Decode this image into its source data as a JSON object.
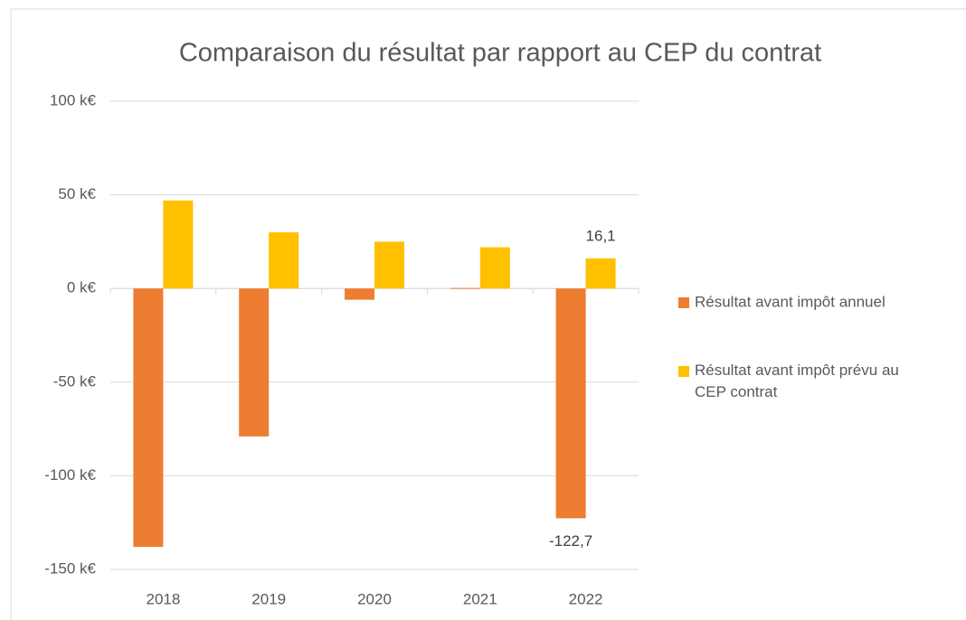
{
  "chart_data": {
    "type": "bar",
    "title": "Comparaison du résultat par rapport au CEP du contrat",
    "categories": [
      "2018",
      "2019",
      "2020",
      "2021",
      "2022"
    ],
    "series": [
      {
        "name": "Résultat avant impôt annuel",
        "color": "#ed7d31",
        "values": [
          -138,
          -79,
          -6,
          0.3,
          -122.7
        ],
        "value_labels": [
          null,
          null,
          null,
          null,
          "-122,7"
        ]
      },
      {
        "name": "Résultat avant impôt prévu au CEP contrat",
        "color": "#ffc000",
        "values": [
          47,
          30,
          25,
          22,
          16.1
        ],
        "value_labels": [
          null,
          null,
          null,
          null,
          "16,1"
        ]
      }
    ],
    "ylim": [
      -150,
      100
    ],
    "yticks": [
      {
        "value": -150,
        "label": "-150 k€"
      },
      {
        "value": -100,
        "label": "-100 k€"
      },
      {
        "value": -50,
        "label": "-50 k€"
      },
      {
        "value": 0,
        "label": "0 k€"
      },
      {
        "value": 50,
        "label": "50 k€"
      },
      {
        "value": 100,
        "label": "100 k€"
      }
    ],
    "grid": true,
    "legend": "right"
  }
}
